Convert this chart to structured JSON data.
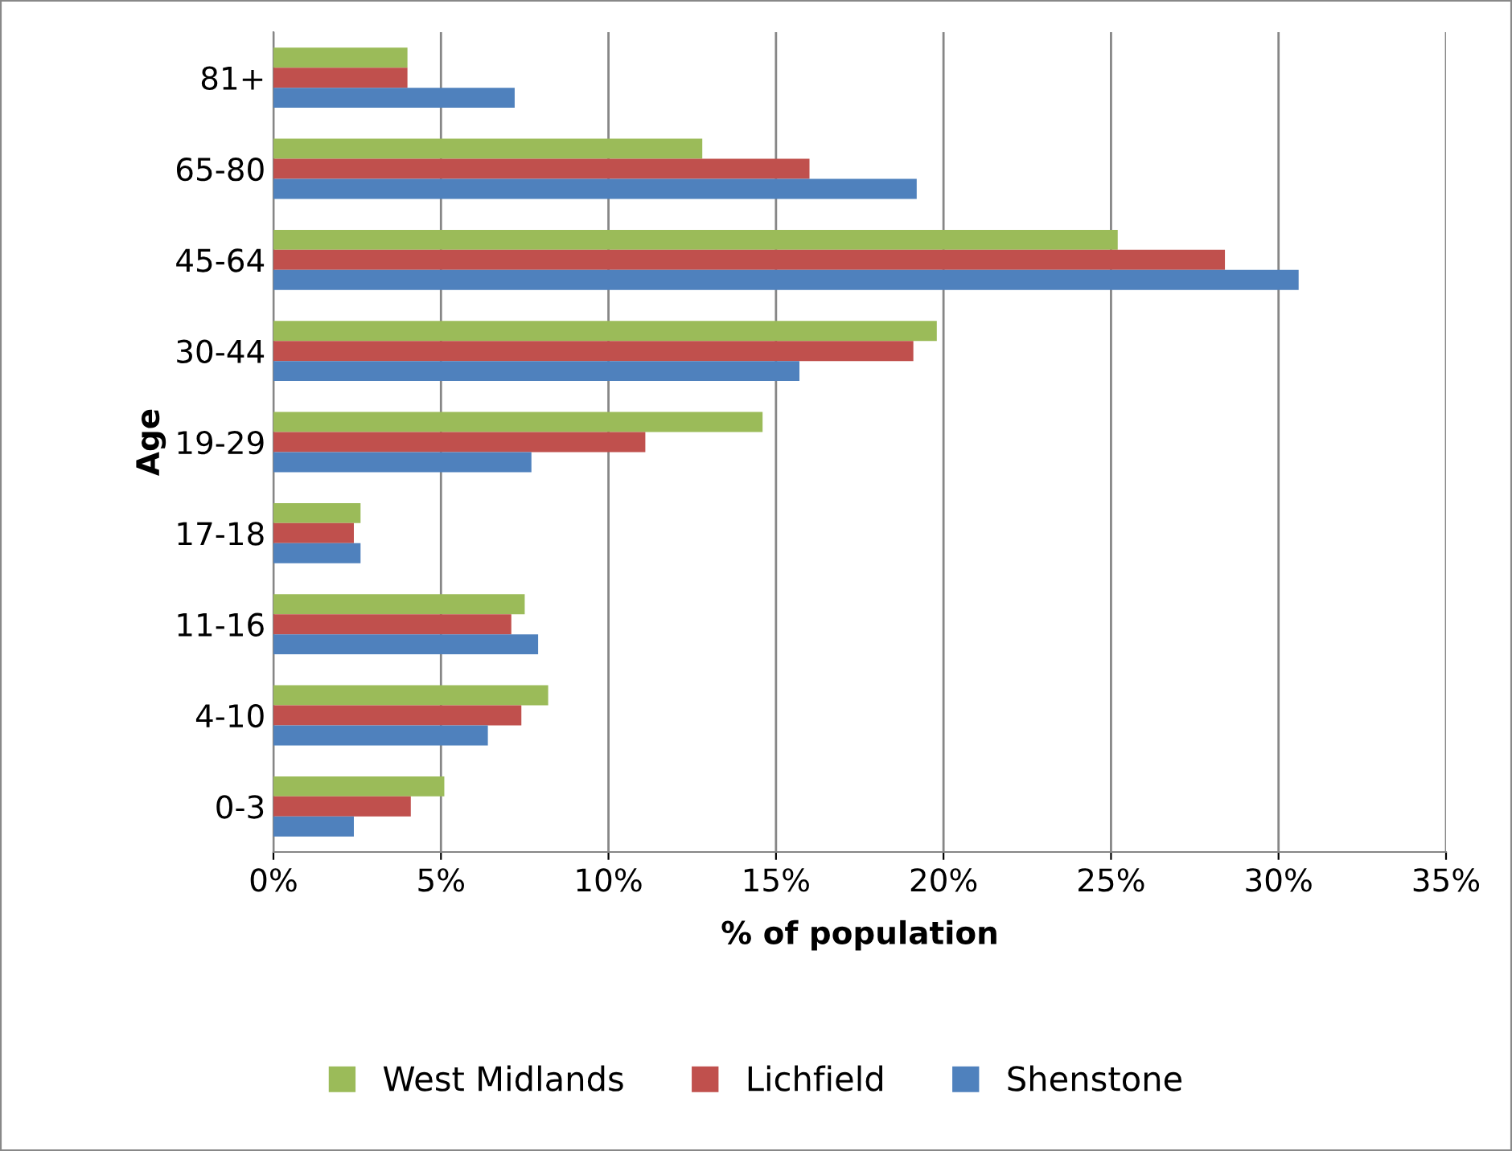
{
  "chart_data": {
    "type": "bar",
    "orientation": "horizontal",
    "xlabel": "% of population",
    "ylabel": "Age",
    "categories": [
      "81+",
      "65-80",
      "45-64",
      "30-44",
      "19-29",
      "17-18",
      "11-16",
      "4-10",
      "0-3"
    ],
    "series": [
      {
        "name": "West Midlands",
        "color": "#9bbb59",
        "values": [
          4.0,
          12.8,
          25.2,
          19.8,
          14.6,
          2.6,
          7.5,
          8.2,
          5.1
        ]
      },
      {
        "name": "Lichfield",
        "color": "#c0504d",
        "values": [
          4.0,
          16.0,
          28.4,
          19.1,
          11.1,
          2.4,
          7.1,
          7.4,
          4.1
        ]
      },
      {
        "name": "Shenstone",
        "color": "#4f81bd",
        "values": [
          7.2,
          19.2,
          30.6,
          15.7,
          7.7,
          2.6,
          7.9,
          6.4,
          2.4
        ]
      }
    ],
    "xlim": [
      0,
      35
    ],
    "xticks": [
      {
        "value": 0,
        "label": "0%"
      },
      {
        "value": 5,
        "label": "5%"
      },
      {
        "value": 10,
        "label": "10%"
      },
      {
        "value": 15,
        "label": "15%"
      },
      {
        "value": 20,
        "label": "20%"
      },
      {
        "value": 25,
        "label": "25%"
      },
      {
        "value": 30,
        "label": "30%"
      },
      {
        "value": 35,
        "label": "35%"
      }
    ],
    "grid": "x",
    "legend": "bottom"
  }
}
